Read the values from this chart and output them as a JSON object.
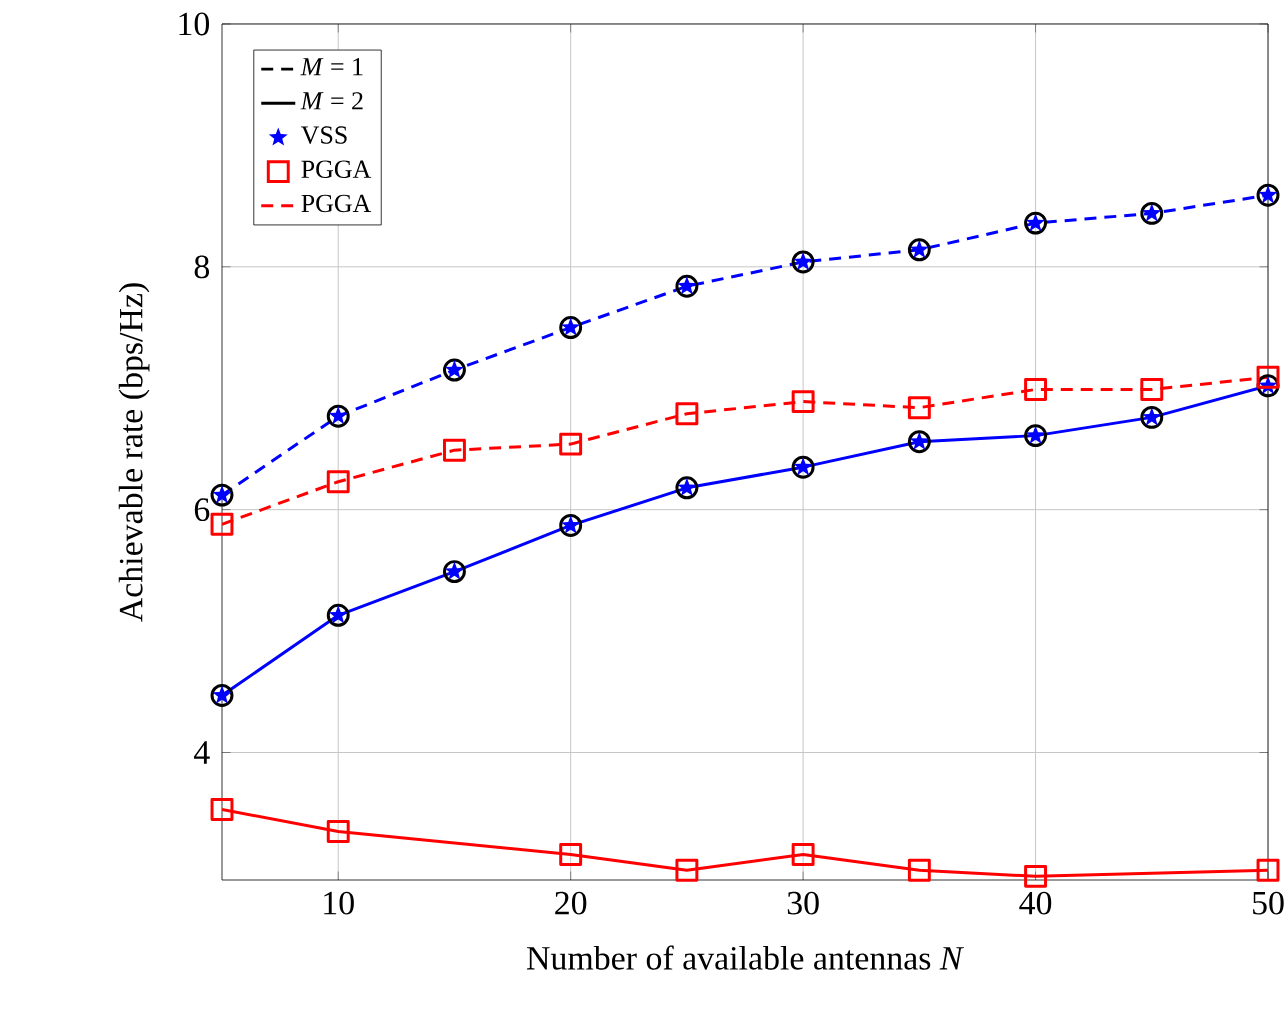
{
  "chart_data": {
    "type": "line",
    "xlabel": "Number of available antennas *N*",
    "ylabel": "Achievable rate (bps/Hz)",
    "x": [
      5,
      10,
      15,
      20,
      25,
      30,
      35,
      40,
      45,
      50
    ],
    "xlim": [
      5,
      50
    ],
    "xticks": [
      10,
      20,
      30,
      40,
      50
    ],
    "ylim": [
      2.95,
      10
    ],
    "yticks": [
      4,
      6,
      8,
      10
    ],
    "grid": true,
    "legend": "top left",
    "series": [
      {
        "type": "scatter",
        "color": "#000000",
        "marker": "circle",
        "values": [
          6.12,
          6.77,
          7.15,
          7.5,
          7.84,
          8.04,
          8.14,
          8.36,
          8.44,
          8.59
        ]
      },
      {
        "type": "scatter",
        "color": "#000000",
        "marker": "circle",
        "values": [
          4.47,
          5.13,
          5.49,
          5.87,
          6.18,
          6.35,
          6.56,
          6.61,
          6.76,
          7.02
        ]
      },
      {
        "color": "#0000ff",
        "marker": "star",
        "line_style": "dashed",
        "values": [
          6.12,
          6.77,
          7.15,
          7.5,
          7.84,
          8.04,
          8.14,
          8.36,
          8.44,
          8.59
        ]
      },
      {
        "color": "#0000ff",
        "marker": "star",
        "line_style": "solid",
        "values": [
          4.47,
          5.13,
          5.49,
          5.87,
          6.18,
          6.35,
          6.56,
          6.61,
          6.76,
          7.02
        ]
      },
      {
        "color": "#ff0000",
        "marker": "square",
        "line_style": "dashed",
        "values": [
          5.88,
          6.23,
          6.49,
          6.54,
          6.79,
          6.89,
          6.84,
          6.99,
          6.99,
          7.09
        ]
      },
      {
        "color": "#ff0000",
        "marker": "square",
        "line_style": "solid",
        "values": [
          3.53,
          3.35,
          null,
          3.16,
          3.03,
          3.16,
          3.03,
          2.98,
          null,
          3.03
        ]
      },
      {
        "name": "*M* = 1",
        "color": "#000000",
        "marker": "none",
        "line_style": "dashed",
        "values": [
          null,
          null,
          null,
          null,
          null,
          null,
          null,
          null,
          null,
          null
        ]
      },
      {
        "name": "*M* = 2",
        "color": "#000000",
        "marker": "none",
        "line_style": "solid",
        "values": [
          null,
          null,
          null,
          null,
          null,
          null,
          null,
          null,
          null,
          null
        ]
      },
      {
        "name": "VSS",
        "type": "scatter",
        "color": "#0000ff",
        "marker": "star",
        "values": [
          null,
          null,
          null,
          null,
          null,
          null,
          null,
          null,
          null,
          null
        ]
      },
      {
        "name": "PGGA",
        "type": "scatter",
        "color": "#ff0000",
        "marker": "square",
        "values": [
          null,
          null,
          null,
          null,
          null,
          null,
          null,
          null,
          null,
          null
        ]
      },
      {
        "name": "PGGA",
        "color": "#ff0000",
        "marker": "none",
        "line_style": "dashed",
        "values": [
          null,
          null,
          null,
          null,
          null,
          null,
          null,
          null,
          null,
          null
        ]
      }
    ]
  }
}
